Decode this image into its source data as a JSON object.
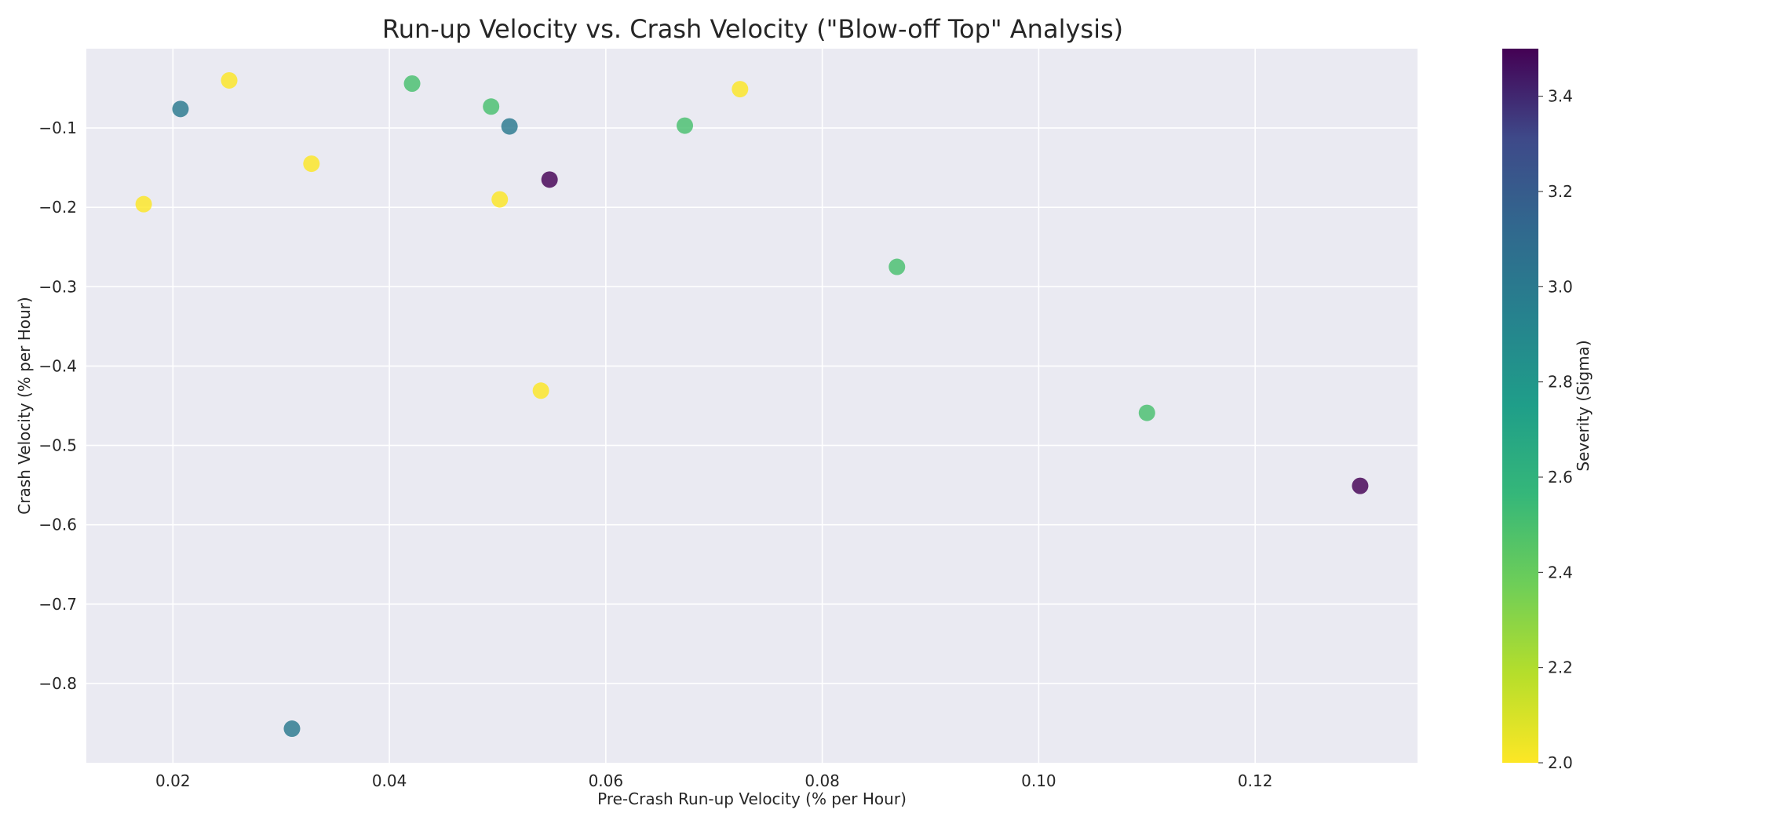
{
  "chart_data": {
    "type": "scatter",
    "title": "Run-up Velocity vs. Crash Velocity (\"Blow-off Top\" Analysis)",
    "xlabel": "Pre-Crash Run-up Velocity (% per Hour)",
    "ylabel": "Crash Velocity (% per Hour)",
    "xlim": [
      0.012,
      0.135
    ],
    "ylim": [
      -0.9,
      0.0
    ],
    "xticks": [
      0.02,
      0.04,
      0.06,
      0.08,
      0.1,
      0.12
    ],
    "xtick_labels": [
      "0.02",
      "0.04",
      "0.06",
      "0.08",
      "0.10",
      "0.12"
    ],
    "yticks": [
      -0.1,
      -0.2,
      -0.3,
      -0.4,
      -0.5,
      -0.6,
      -0.7,
      -0.8
    ],
    "ytick_labels": [
      "−0.1",
      "−0.2",
      "−0.3",
      "−0.4",
      "−0.5",
      "−0.6",
      "−0.7",
      "−0.8"
    ],
    "grid": true,
    "colorbar": {
      "label": "Severity (Sigma)",
      "min": 2.0,
      "max": 3.5,
      "colormap": "viridis_r",
      "ticks": [
        2.0,
        2.2,
        2.4,
        2.6,
        2.8,
        3.0,
        3.2,
        3.4
      ],
      "tick_labels": [
        "2.0",
        "2.2",
        "2.4",
        "2.6",
        "2.8",
        "3.0",
        "3.2",
        "3.4"
      ]
    },
    "points": [
      {
        "x": 0.0252,
        "y": -0.04,
        "severity": 2.0
      },
      {
        "x": 0.0207,
        "y": -0.076,
        "severity": 3.0
      },
      {
        "x": 0.0173,
        "y": -0.196,
        "severity": 2.0
      },
      {
        "x": 0.0328,
        "y": -0.145,
        "severity": 2.0
      },
      {
        "x": 0.031,
        "y": -0.857,
        "severity": 3.0
      },
      {
        "x": 0.0421,
        "y": -0.044,
        "severity": 2.5
      },
      {
        "x": 0.0494,
        "y": -0.073,
        "severity": 2.5
      },
      {
        "x": 0.0511,
        "y": -0.098,
        "severity": 3.0
      },
      {
        "x": 0.0502,
        "y": -0.19,
        "severity": 2.0
      },
      {
        "x": 0.0548,
        "y": -0.165,
        "severity": 3.5
      },
      {
        "x": 0.054,
        "y": -0.431,
        "severity": 2.0
      },
      {
        "x": 0.0673,
        "y": -0.097,
        "severity": 2.5
      },
      {
        "x": 0.0724,
        "y": -0.051,
        "severity": 2.0
      },
      {
        "x": 0.0869,
        "y": -0.275,
        "severity": 2.5
      },
      {
        "x": 0.11,
        "y": -0.459,
        "severity": 2.5
      },
      {
        "x": 0.1297,
        "y": -0.551,
        "severity": 3.5
      }
    ]
  },
  "colors": {
    "plot_background": "#eaeaf2",
    "grid": "#ffffff",
    "text": "#262626"
  }
}
